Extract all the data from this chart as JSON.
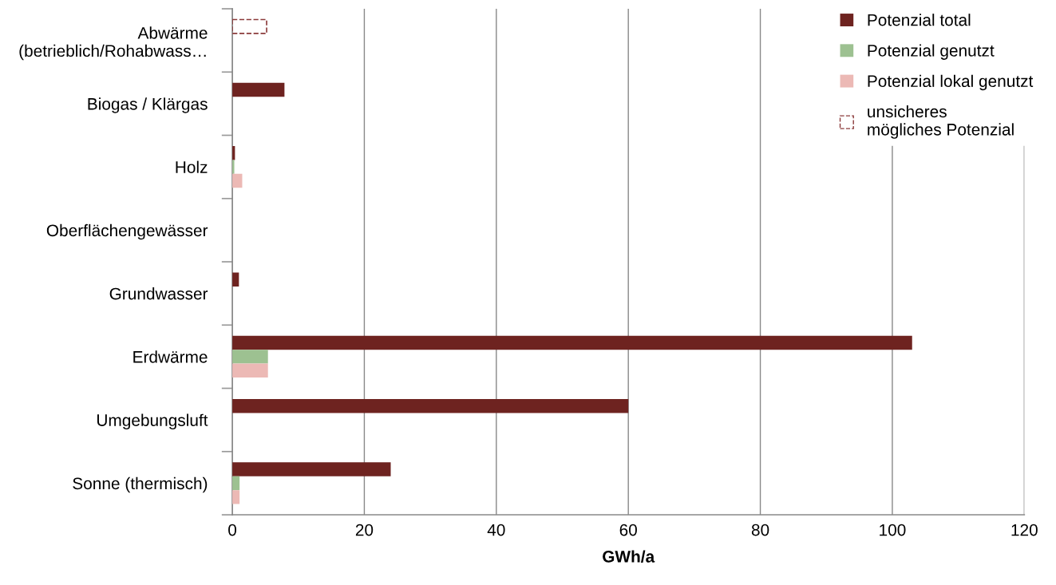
{
  "chart_data": {
    "type": "bar",
    "orientation": "horizontal",
    "xlabel": "GWh/a",
    "categories": [
      "Abwärme\n(betrieblich/Rohabwass…",
      "Biogas / Klärgas",
      "Holz",
      "Oberflächengewässer",
      "Grundwasser",
      "Erdwärme",
      "Umgebungsluft",
      "Sonne (thermisch)"
    ],
    "series": [
      {
        "name": "Potenzial total",
        "color": "#6e2320",
        "values": [
          null,
          7.9,
          0.4,
          null,
          1.0,
          103,
          60,
          24
        ]
      },
      {
        "name": "Potenzial genutzt",
        "color": "#9dc191",
        "values": [
          null,
          null,
          0.3,
          null,
          null,
          5.4,
          null,
          1.1
        ]
      },
      {
        "name": "Potenzial lokal genutzt",
        "color": "#ecb9b5",
        "values": [
          null,
          null,
          1.5,
          null,
          null,
          5.4,
          null,
          1.1
        ]
      },
      {
        "name": "unsicheres\nmögliches Potenzial",
        "color": "#8b3a3a",
        "line_style": "dashed",
        "values": [
          5.2,
          null,
          null,
          null,
          null,
          null,
          null,
          null
        ]
      }
    ],
    "xlim": [
      0,
      120
    ],
    "xticks": [
      0,
      20,
      40,
      60,
      80,
      100,
      120
    ],
    "grid": "x",
    "legend": "top right"
  }
}
